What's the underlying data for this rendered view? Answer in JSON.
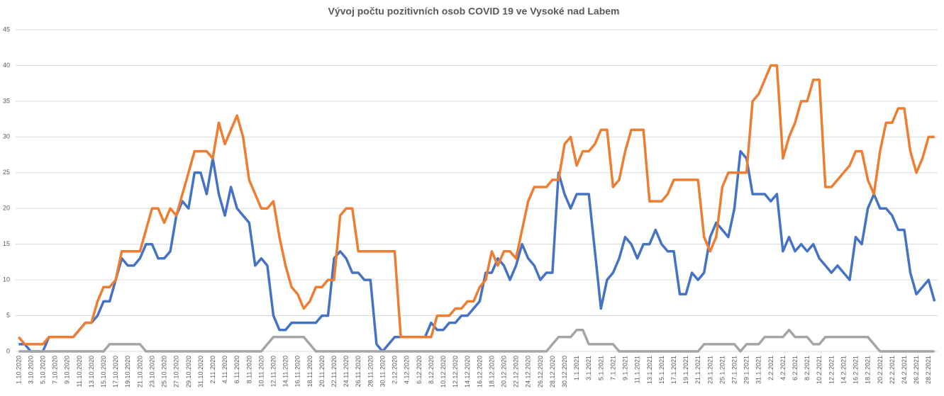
{
  "chart_data": {
    "type": "line",
    "title": "Vývoj počtu pozitivních osob COVID 19 ve Vysoké nad Labem",
    "categories": [
      "1.10.2020",
      null,
      "3.10.2020",
      null,
      "5.10.2020",
      null,
      "7.10.2020",
      null,
      "9.10.2020",
      null,
      "11.10.2020",
      null,
      "13.10.2020",
      null,
      "15.10.2020",
      null,
      "17.10.2020",
      null,
      "19.10.2020",
      null,
      "21.10.2020",
      null,
      "23.10.2020",
      null,
      "25.10.2020",
      null,
      "27.10.2020",
      null,
      "29.10.2020",
      null,
      "31.10.2020",
      null,
      "2.11.2020",
      null,
      "4.11.2020",
      null,
      "6.11.2020",
      null,
      "8.11.2020",
      null,
      "10.11.2020",
      null,
      "12.11.2020",
      null,
      "14.11.2020",
      null,
      "16.11.2020",
      null,
      "18.11.2020",
      null,
      "20.11.2020",
      null,
      "22.11.2020",
      null,
      "24.11.2020",
      null,
      "26.11.2020",
      null,
      "28.11.2020",
      null,
      "30.11.2020",
      null,
      "2.12.2020",
      null,
      "4.12.2020",
      null,
      "6.12.2020",
      null,
      "8.12.2020",
      null,
      "10.12.2020",
      null,
      "12.12.2020",
      null,
      "14.12.2020",
      null,
      "16.12.2020",
      null,
      "18.12.2020",
      null,
      "20.12.2020",
      null,
      "22.12.2020",
      null,
      "24.12.2020",
      null,
      "26.12.2020",
      null,
      "28.12.2020",
      null,
      "30.12.2020",
      null,
      "1.1.2021",
      null,
      "3.1.2021",
      null,
      "5.1.2021",
      null,
      "7.1.2021",
      null,
      "9.1.2021",
      null,
      "11.1.2021",
      null,
      "13.1.2021",
      null,
      "15.1.2021",
      null,
      "17.1.2021",
      null,
      "19.1.2021",
      null,
      "21.1.2021",
      null,
      "23.1.2021",
      null,
      "25.1.2021",
      null,
      "27.1.2021",
      null,
      "29.1.2021",
      null,
      "31.1.2021",
      null,
      "2.2.2021",
      null,
      "4.2.2021",
      null,
      "6.2.2021",
      null,
      "8.2.2021",
      null,
      "10.2.2021",
      null,
      "12.2.2021",
      null,
      "14.2.2021",
      null,
      "16.2.2021",
      null,
      "18.2.2021",
      null,
      "20.2.2021",
      null,
      "22.2.2021",
      null,
      "24.2.2021",
      null,
      "26.2.2021",
      null,
      "28.2.2021",
      null
    ],
    "series": [
      {
        "color": "#4472c4",
        "values": [
          1,
          1,
          0,
          0,
          0,
          2,
          2,
          2,
          2,
          2,
          3,
          4,
          4,
          5,
          7,
          7,
          10,
          13,
          12,
          12,
          13,
          15,
          15,
          13,
          13,
          14,
          19,
          21,
          20,
          25,
          25,
          22,
          27,
          22,
          19,
          23,
          20,
          19,
          18,
          12,
          13,
          12,
          5,
          3,
          3,
          4,
          4,
          4,
          4,
          4,
          5,
          5,
          13,
          14,
          13,
          11,
          11,
          10,
          10,
          1,
          0,
          1,
          2,
          2,
          2,
          2,
          2,
          2,
          4,
          3,
          3,
          4,
          4,
          5,
          5,
          6,
          7,
          11,
          11,
          13,
          12,
          10,
          12,
          15,
          13,
          12,
          10,
          11,
          11,
          25,
          22,
          20,
          22,
          22,
          22,
          14,
          6,
          10,
          11,
          13,
          16,
          15,
          13,
          15,
          15,
          17,
          15,
          14,
          14,
          8,
          8,
          11,
          10,
          11,
          16,
          18,
          17,
          16,
          20,
          28,
          27,
          22,
          22,
          22,
          21,
          22,
          14,
          16,
          14,
          15,
          14,
          15,
          13,
          12,
          11,
          12,
          11,
          10,
          16,
          15,
          20,
          22,
          20,
          20,
          19,
          17,
          17,
          11,
          8,
          9,
          10,
          7
        ]
      },
      {
        "color": "#ed7d31",
        "values": [
          2,
          1,
          1,
          1,
          1,
          2,
          2,
          2,
          2,
          2,
          3,
          4,
          4,
          7,
          9,
          9,
          10,
          14,
          14,
          14,
          14,
          17,
          20,
          20,
          18,
          20,
          19,
          22,
          25,
          28,
          28,
          28,
          27,
          32,
          29,
          31,
          33,
          30,
          24,
          22,
          20,
          20,
          21,
          16,
          12,
          9,
          8,
          6,
          7,
          9,
          9,
          10,
          10,
          19,
          20,
          20,
          14,
          14,
          14,
          14,
          14,
          14,
          14,
          2,
          2,
          2,
          2,
          2,
          2,
          5,
          5,
          5,
          6,
          6,
          7,
          7,
          9,
          10,
          14,
          12,
          14,
          14,
          13,
          17,
          21,
          23,
          23,
          23,
          24,
          24,
          29,
          30,
          26,
          28,
          28,
          29,
          31,
          31,
          23,
          24,
          28,
          31,
          31,
          31,
          21,
          21,
          21,
          22,
          24,
          24,
          24,
          24,
          24,
          16,
          14,
          16,
          23,
          25,
          25,
          25,
          25,
          35,
          36,
          38,
          40,
          40,
          27,
          30,
          32,
          35,
          35,
          38,
          38,
          23,
          23,
          24,
          25,
          26,
          28,
          28,
          24,
          22,
          28,
          32,
          32,
          34,
          34,
          28,
          25,
          27,
          30,
          30
        ]
      },
      {
        "color": "#a5a5a5",
        "values": [
          0,
          0,
          0,
          0,
          0,
          0,
          0,
          0,
          0,
          0,
          0,
          0,
          0,
          0,
          0,
          1,
          1,
          1,
          1,
          1,
          1,
          0,
          0,
          0,
          0,
          0,
          0,
          0,
          0,
          0,
          0,
          0,
          0,
          0,
          0,
          0,
          0,
          0,
          0,
          0,
          0,
          1,
          2,
          2,
          2,
          2,
          2,
          2,
          1,
          0,
          0,
          0,
          0,
          0,
          0,
          0,
          0,
          0,
          0,
          0,
          0,
          0,
          0,
          0,
          0,
          0,
          0,
          0,
          0,
          0,
          0,
          0,
          0,
          0,
          0,
          0,
          0,
          0,
          0,
          0,
          0,
          0,
          0,
          0,
          0,
          0,
          0,
          0,
          1,
          2,
          2,
          2,
          3,
          3,
          1,
          1,
          1,
          1,
          1,
          0,
          0,
          0,
          0,
          0,
          0,
          0,
          0,
          0,
          0,
          0,
          0,
          0,
          0,
          1,
          1,
          1,
          1,
          1,
          1,
          0,
          1,
          1,
          1,
          2,
          2,
          2,
          2,
          3,
          2,
          2,
          2,
          1,
          1,
          2,
          2,
          2,
          2,
          2,
          2,
          2,
          2,
          1,
          0,
          0,
          0,
          0,
          0,
          0,
          0,
          0,
          0,
          0
        ]
      }
    ],
    "ylim": [
      0,
      45
    ],
    "yticks": [
      0,
      5,
      10,
      15,
      20,
      25,
      30,
      35,
      40,
      45
    ],
    "grid": true
  }
}
